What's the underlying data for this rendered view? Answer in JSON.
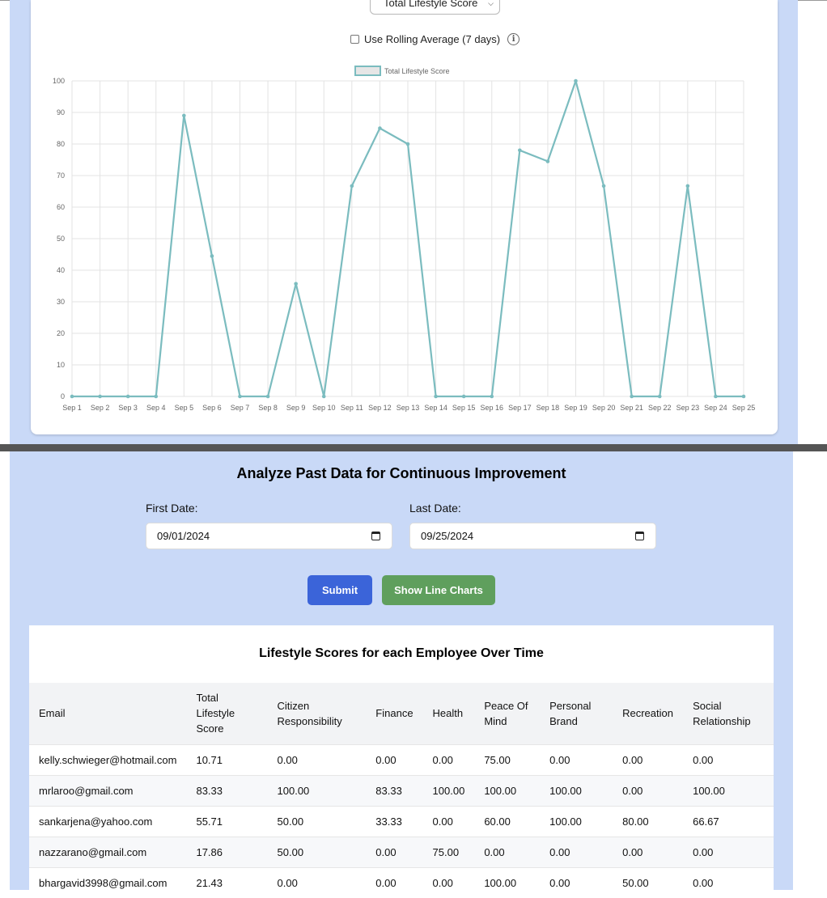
{
  "controls": {
    "metric_select_value": "Total Lifestyle Score",
    "rolling_average_label": "Use Rolling Average (7 days)",
    "rolling_average_checked": false,
    "info_icon": "info-icon"
  },
  "chart_data": {
    "type": "line",
    "title": "",
    "xlabel": "",
    "ylabel": "",
    "legend": "top-center",
    "grid": true,
    "ylim": [
      0,
      100
    ],
    "yticks": [
      0,
      10,
      20,
      30,
      40,
      50,
      60,
      70,
      80,
      90,
      100
    ],
    "categories": [
      "Sep 1",
      "Sep 2",
      "Sep 3",
      "Sep 4",
      "Sep 5",
      "Sep 6",
      "Sep 7",
      "Sep 8",
      "Sep 9",
      "Sep 10",
      "Sep 11",
      "Sep 12",
      "Sep 13",
      "Sep 14",
      "Sep 15",
      "Sep 16",
      "Sep 17",
      "Sep 18",
      "Sep 19",
      "Sep 20",
      "Sep 21",
      "Sep 22",
      "Sep 23",
      "Sep 24",
      "Sep 25"
    ],
    "series": [
      {
        "name": "Total Lifestyle Score",
        "color": "#7bbcbf",
        "values": [
          0,
          0,
          0,
          0,
          89,
          44.5,
          0,
          0,
          35.7,
          0,
          66.7,
          85,
          80,
          0,
          0,
          0,
          78,
          74.5,
          100,
          66.7,
          0,
          0,
          66.7,
          0,
          0
        ]
      }
    ]
  },
  "analysis": {
    "title": "Analyze Past Data for Continuous Improvement",
    "first_date_label": "First Date:",
    "first_date_value": "09/01/2024",
    "last_date_label": "Last Date:",
    "last_date_value": "09/25/2024",
    "submit_label": "Submit",
    "show_line_charts_label": "Show Line Charts"
  },
  "table": {
    "title": "Lifestyle Scores for each Employee Over Time",
    "columns": [
      [
        "Email"
      ],
      [
        "Total",
        "Lifestyle",
        "Score"
      ],
      [
        "Citizen",
        "Responsibility"
      ],
      [
        "Finance"
      ],
      [
        "Health"
      ],
      [
        "Peace Of",
        "Mind"
      ],
      [
        "Personal",
        "Brand"
      ],
      [
        "Recreation"
      ],
      [
        "Social",
        "Relationship"
      ]
    ],
    "rows": [
      [
        "kelly.schwieger@hotmail.com",
        "10.71",
        "0.00",
        "0.00",
        "0.00",
        "75.00",
        "0.00",
        "0.00",
        "0.00"
      ],
      [
        "mrlaroo@gmail.com",
        "83.33",
        "100.00",
        "83.33",
        "100.00",
        "100.00",
        "100.00",
        "0.00",
        "100.00"
      ],
      [
        "sankarjena@yahoo.com",
        "55.71",
        "50.00",
        "33.33",
        "0.00",
        "60.00",
        "100.00",
        "80.00",
        "66.67"
      ],
      [
        "nazzarano@gmail.com",
        "17.86",
        "50.00",
        "0.00",
        "75.00",
        "0.00",
        "0.00",
        "0.00",
        "0.00"
      ],
      [
        "bhargavid3998@gmail.com",
        "21.43",
        "0.00",
        "0.00",
        "0.00",
        "100.00",
        "0.00",
        "50.00",
        "0.00"
      ]
    ]
  }
}
